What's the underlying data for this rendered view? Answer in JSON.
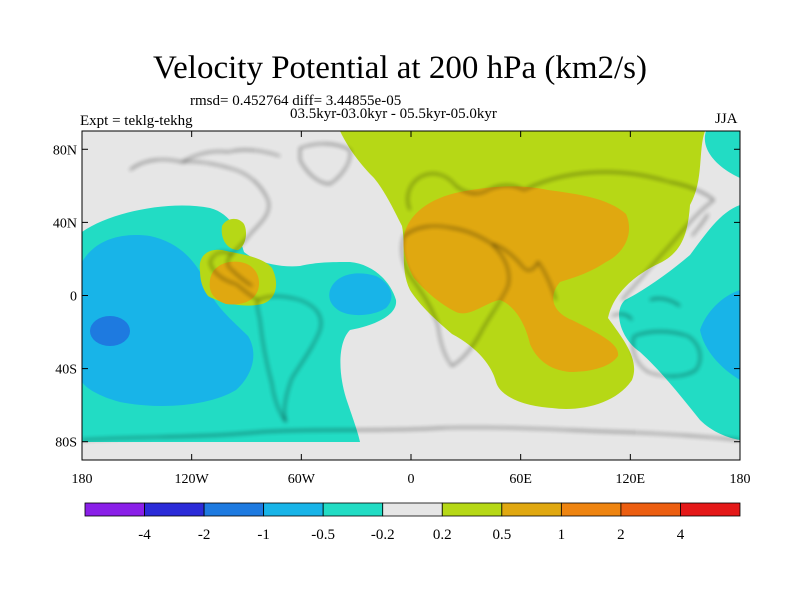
{
  "title": "Velocity Potential at 200 hPa (km2/s)",
  "rmsd_line": "rmsd= 0.452764 diff= 3.44855e-05",
  "period_line": "03.5kyr-03.0kyr - 05.5kyr-05.0kyr",
  "experiment_line": "Expt = teklg-tekhg",
  "season": "JJA",
  "map": {
    "projection": "equirectangular",
    "lon_range": [
      -180,
      180
    ],
    "lat_range": [
      -90,
      90
    ],
    "x_tick_labels": [
      {
        "lon": -180,
        "label": "180"
      },
      {
        "lon": -120,
        "label": "120W"
      },
      {
        "lon": -60,
        "label": "60W"
      },
      {
        "lon": 0,
        "label": "0"
      },
      {
        "lon": 60,
        "label": "60E"
      },
      {
        "lon": 120,
        "label": "120E"
      },
      {
        "lon": 180,
        "label": "180"
      }
    ],
    "y_tick_labels": [
      {
        "lat": 80,
        "label": "80N"
      },
      {
        "lat": 40,
        "label": "40N"
      },
      {
        "lat": 0,
        "label": "0"
      },
      {
        "lat": -40,
        "label": "40S"
      },
      {
        "lat": -80,
        "label": "80S"
      }
    ]
  },
  "colorbar": {
    "colors": [
      "#8a1fe8",
      "#2b2bd8",
      "#1e7ae0",
      "#18b4e8",
      "#22dcc4",
      "#e6e6e6",
      "#b6d816",
      "#e0a810",
      "#ee8410",
      "#ec5e10",
      "#e41818"
    ],
    "labels": [
      "-4",
      "-2",
      "-1",
      "-0.5",
      "-0.2",
      "0.2",
      "0.5",
      "1",
      "2",
      "4"
    ]
  }
}
